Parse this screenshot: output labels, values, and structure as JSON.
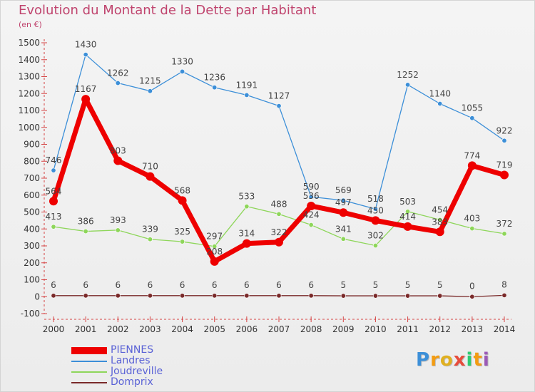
{
  "header": {
    "title": "Evolution du Montant de la Dette par Habitant",
    "subtitle": "(en €)"
  },
  "logo": {
    "letters": [
      "P",
      "r",
      "o",
      "x",
      "i",
      "t",
      "i"
    ],
    "colors": [
      "#3c8fd8",
      "#f39c12",
      "#e0b020",
      "#e74c3c",
      "#2ecc71",
      "#f39c12",
      "#9b59b6"
    ]
  },
  "chart_data": {
    "type": "line",
    "title": "Evolution du Montant de la Dette par Habitant",
    "subtitle": "(en €)",
    "x": [
      "2000",
      "2001",
      "2002",
      "2003",
      "2004",
      "2005",
      "2006",
      "2007",
      "2008",
      "2009",
      "2010",
      "2011",
      "2012",
      "2013",
      "2014"
    ],
    "yticks": [
      "-100",
      "0",
      "100",
      "200",
      "300",
      "400",
      "500",
      "600",
      "700",
      "800",
      "900",
      "1000",
      "1100",
      "1200",
      "1300",
      "1400",
      "1500"
    ],
    "ylim": [
      -100,
      1500
    ],
    "grid": false,
    "legend_position": "bottom-left",
    "series": [
      {
        "name": "PIENNES",
        "color": "#ee0000",
        "values": [
          564,
          1167,
          803,
          710,
          568,
          208,
          314,
          322,
          536,
          497,
          450,
          414,
          383,
          774,
          719
        ],
        "labels": [
          "564",
          "1167",
          "803",
          "710",
          "568",
          "208",
          "314",
          "322",
          "536",
          "497",
          "450",
          "414",
          "383",
          "774",
          "719"
        ]
      },
      {
        "name": "Landres",
        "color": "#3c8fd8",
        "values": [
          746,
          1430,
          1262,
          1215,
          1330,
          1236,
          1191,
          1127,
          590,
          569,
          518,
          1252,
          1140,
          1055,
          922
        ],
        "labels": [
          "746",
          "1430",
          "1262",
          "1215",
          "1330",
          "1236",
          "1191",
          "1127",
          "590",
          "569",
          "518",
          "1252",
          "1140",
          "1055",
          "922"
        ]
      },
      {
        "name": "Joudreville",
        "color": "#8ed65a",
        "values": [
          413,
          386,
          393,
          339,
          325,
          297,
          533,
          488,
          424,
          341,
          302,
          503,
          454,
          403,
          372
        ],
        "labels": [
          "413",
          "386",
          "393",
          "339",
          "325",
          "297",
          "533",
          "488",
          "424",
          "341",
          "302",
          "503",
          "454",
          "403",
          "372"
        ]
      },
      {
        "name": "Domprix",
        "color": "#7a2a2a",
        "values": [
          6,
          6,
          6,
          6,
          6,
          6,
          6,
          6,
          6,
          5,
          5,
          5,
          5,
          0,
          8
        ],
        "labels": [
          "6",
          "6",
          "6",
          "6",
          "6",
          "6",
          "6",
          "6",
          "6",
          "5",
          "5",
          "5",
          "5",
          "0",
          "8"
        ]
      }
    ]
  }
}
